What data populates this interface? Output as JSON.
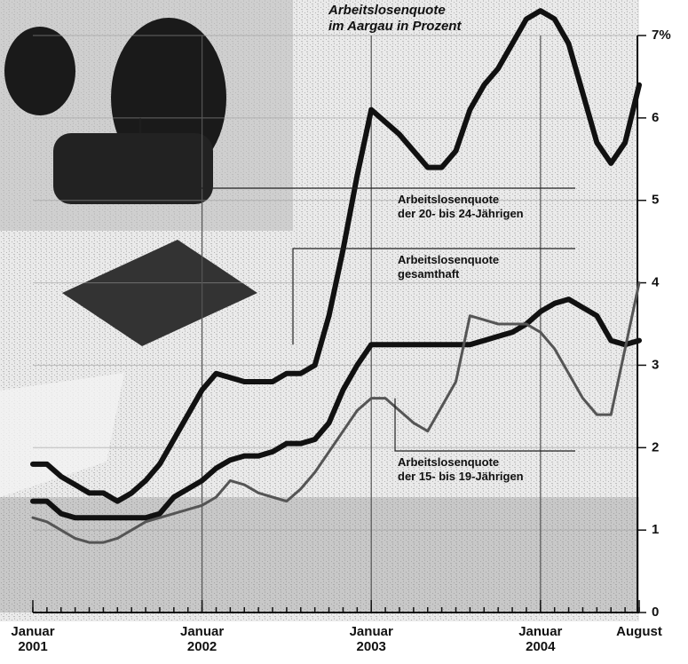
{
  "chart_data": {
    "type": "line",
    "title": [
      "Arbeitslosenquote",
      "im Aargau in Prozent"
    ],
    "x": [
      "2001-01",
      "2001-02",
      "2001-03",
      "2001-04",
      "2001-05",
      "2001-06",
      "2001-07",
      "2001-08",
      "2001-09",
      "2001-10",
      "2001-11",
      "2001-12",
      "2002-01",
      "2002-02",
      "2002-03",
      "2002-04",
      "2002-05",
      "2002-06",
      "2002-07",
      "2002-08",
      "2002-09",
      "2002-10",
      "2002-11",
      "2002-12",
      "2003-01",
      "2003-02",
      "2003-03",
      "2003-04",
      "2003-05",
      "2003-06",
      "2003-07",
      "2003-08",
      "2003-09",
      "2003-10",
      "2003-11",
      "2003-12",
      "2004-01",
      "2004-02",
      "2004-03",
      "2004-04",
      "2004-05",
      "2004-06",
      "2004-07",
      "2004-08"
    ],
    "xticks": [
      {
        "value": "2001-01",
        "label": "Januar 2001"
      },
      {
        "value": "2002-01",
        "label": "Januar 2002"
      },
      {
        "value": "2003-01",
        "label": "Januar 2003"
      },
      {
        "value": "2004-01",
        "label": "Januar 2004"
      },
      {
        "value": "2004-08",
        "label": "August"
      }
    ],
    "ylim": [
      0,
      7
    ],
    "yticks": [
      0,
      1,
      2,
      3,
      4,
      5,
      6,
      {
        "value": 7,
        "label": "7%"
      }
    ],
    "grid": true,
    "series": [
      {
        "name": [
          "Arbeitslosenquote",
          "der 20- bis 24-Jährigen"
        ],
        "color": "#111111",
        "values": [
          1.8,
          1.8,
          1.65,
          1.55,
          1.45,
          1.45,
          1.35,
          1.45,
          1.6,
          1.8,
          2.1,
          2.4,
          2.7,
          2.9,
          2.85,
          2.8,
          2.8,
          2.8,
          2.9,
          2.9,
          3.0,
          3.6,
          4.4,
          5.3,
          6.1,
          5.95,
          5.8,
          5.6,
          5.4,
          5.4,
          5.6,
          6.1,
          6.4,
          6.6,
          6.9,
          7.2,
          7.3,
          7.2,
          6.9,
          6.3,
          5.7,
          5.45,
          5.7,
          6.4
        ]
      },
      {
        "name": [
          "Arbeitslosenquote",
          "gesamthaft"
        ],
        "color": "#111111",
        "values": [
          1.35,
          1.35,
          1.2,
          1.15,
          1.15,
          1.15,
          1.15,
          1.15,
          1.15,
          1.2,
          1.4,
          1.5,
          1.6,
          1.75,
          1.85,
          1.9,
          1.9,
          1.95,
          2.05,
          2.05,
          2.1,
          2.3,
          2.7,
          3.0,
          3.25,
          3.25,
          3.25,
          3.25,
          3.25,
          3.25,
          3.25,
          3.25,
          3.3,
          3.35,
          3.4,
          3.5,
          3.65,
          3.75,
          3.8,
          3.7,
          3.6,
          3.3,
          3.25,
          3.3
        ]
      },
      {
        "name": [
          "Arbeitslosenquote",
          "der 15- bis 19-Jährigen"
        ],
        "color": "#555555",
        "values": [
          1.15,
          1.1,
          1.0,
          0.9,
          0.85,
          0.85,
          0.9,
          1.0,
          1.1,
          1.15,
          1.2,
          1.25,
          1.3,
          1.4,
          1.6,
          1.55,
          1.45,
          1.4,
          1.35,
          1.5,
          1.7,
          1.95,
          2.2,
          2.45,
          2.6,
          2.6,
          2.45,
          2.3,
          2.2,
          2.5,
          2.8,
          3.6,
          3.55,
          3.5,
          3.5,
          3.5,
          3.4,
          3.2,
          2.9,
          2.6,
          2.4,
          2.4,
          3.2,
          4.0
        ]
      }
    ]
  }
}
